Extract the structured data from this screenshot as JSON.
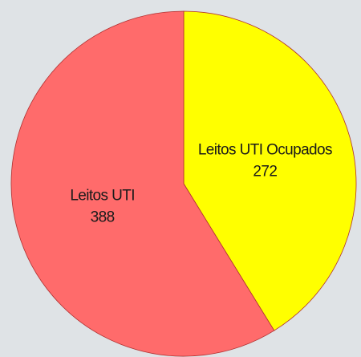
{
  "chart_data": {
    "type": "pie",
    "categories": [
      "Leitos UTI Ocupados",
      "Leitos UTI"
    ],
    "values": [
      272,
      388
    ],
    "colors": [
      "#ffff00",
      "#ff6b6b"
    ]
  }
}
